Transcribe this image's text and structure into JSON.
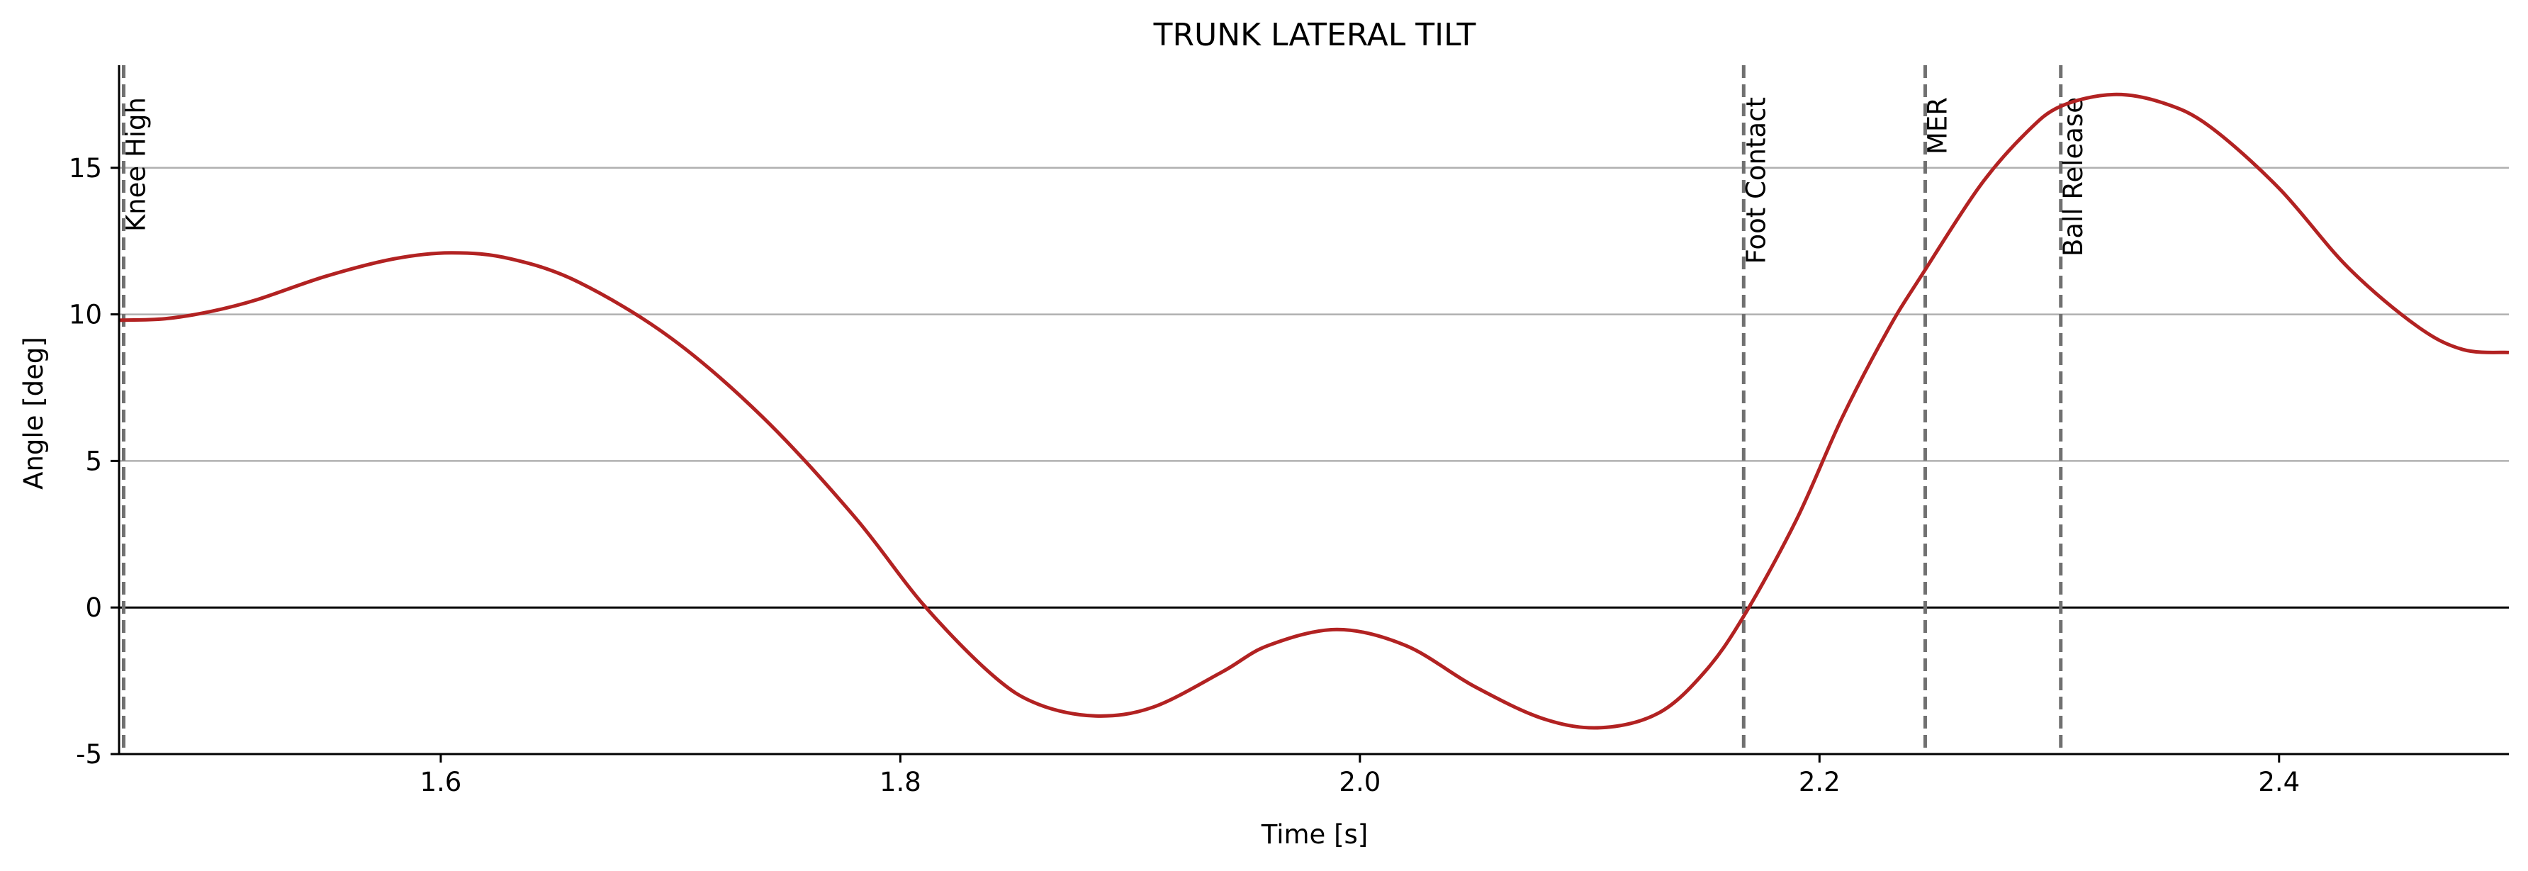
{
  "chart_data": {
    "type": "line",
    "title": "TRUNK LATERAL TILT",
    "xlabel": "Time [s]",
    "ylabel": "Angle [deg]",
    "xlim": [
      1.46,
      2.5
    ],
    "ylim": [
      -5,
      18.5
    ],
    "xticks": [
      1.6,
      1.8,
      2.0,
      2.2,
      2.4
    ],
    "xtick_labels": [
      "1.6",
      "1.8",
      "2.0",
      "2.2",
      "2.4"
    ],
    "yticks": [
      -5,
      0,
      5,
      10,
      15
    ],
    "ytick_labels": [
      "-5",
      "0",
      "5",
      "10",
      "15"
    ],
    "grid": "horizontal",
    "zero_line": true,
    "series": [
      {
        "color": "#b22222",
        "x": [
          1.46,
          1.48,
          1.5,
          1.52,
          1.55,
          1.58,
          1.605,
          1.63,
          1.66,
          1.7,
          1.74,
          1.78,
          1.81,
          1.84,
          1.86,
          1.885,
          1.91,
          1.94,
          1.96,
          1.99,
          2.02,
          2.05,
          2.08,
          2.105,
          2.13,
          2.15,
          2.167,
          2.19,
          2.21,
          2.23,
          2.245,
          2.27,
          2.29,
          2.305,
          2.328,
          2.35,
          2.37,
          2.4,
          2.43,
          2.46,
          2.48,
          2.5
        ],
        "y": [
          9.8,
          9.85,
          10.1,
          10.5,
          11.3,
          11.9,
          12.1,
          11.9,
          11.1,
          9.2,
          6.5,
          3.1,
          0.1,
          -2.3,
          -3.3,
          -3.7,
          -3.4,
          -2.2,
          -1.3,
          -0.75,
          -1.3,
          -2.7,
          -3.8,
          -4.1,
          -3.6,
          -2.2,
          -0.3,
          3.0,
          6.5,
          9.5,
          11.4,
          14.4,
          16.2,
          17.1,
          17.5,
          17.2,
          16.4,
          14.3,
          11.6,
          9.6,
          8.8,
          8.7
        ]
      }
    ],
    "events": [
      {
        "label": "Knee High",
        "x": 1.462
      },
      {
        "label": "Foot Contact",
        "x": 2.167
      },
      {
        "label": "MER",
        "x": 2.246
      },
      {
        "label": "Ball Release",
        "x": 2.305
      }
    ],
    "colors": {
      "line": "#b22222",
      "grid": "#b0b0b0",
      "event_line": "#707070",
      "zero_line": "#000000"
    }
  }
}
